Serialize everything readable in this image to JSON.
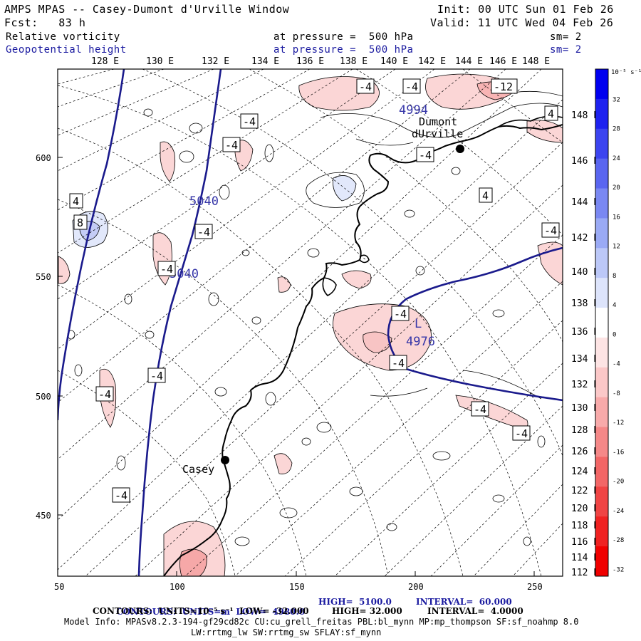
{
  "header": {
    "title": "AMPS MPAS -- Casey-Dumont d'Urville Window",
    "fcst": "Fcst:   83 h",
    "init": "Init: 00 UTC Sun 01 Feb 26",
    "valid": "Valid: 11 UTC Wed 04 Feb 26",
    "field1_name": "Relative vorticity",
    "field1_level": "at pressure =  500 hPa",
    "field1_sm": "sm= 2",
    "field2_name": "Geopotential height",
    "field2_level": "at pressure =  500 hPa",
    "field2_sm": "sm= 2"
  },
  "map": {
    "top_lon_labels": [
      "128 E",
      "130 E",
      "132 E",
      "134 E",
      "136 E",
      "138 E",
      "140 E",
      "142 E",
      "144 E",
      "146 E",
      "148 E"
    ],
    "right_lon_labels": [
      "148 E",
      "146 E",
      "144 E",
      "142 E",
      "140 E",
      "138 E",
      "136 E",
      "134 E",
      "132 E",
      "130 E",
      "128 E",
      "126 E",
      "124 E",
      "122 E",
      "120 E",
      "118 E",
      "116 E",
      "114 E",
      "112 E"
    ],
    "x_ticks": [
      "50",
      "100",
      "150",
      "200",
      "250"
    ],
    "y_ticks": [
      "600",
      "550",
      "500",
      "450"
    ],
    "stations": [
      {
        "name": "Casey"
      },
      {
        "name": "Dumont dUrville"
      }
    ],
    "height_labels": [
      "5040",
      "5040",
      "4994",
      "4976"
    ],
    "low_marker": "L",
    "vorticity_labels": [
      "-4",
      "-4",
      "-12",
      "-4",
      "-4",
      "4",
      "-4",
      "4",
      "4",
      "8",
      "-4",
      "-4",
      "-4",
      "-4",
      "-4",
      "-4",
      "-4",
      "-4",
      "-4",
      "-4",
      "-4",
      "-4"
    ]
  },
  "colorbar": {
    "unit": "10⁻⁵ s⁻¹",
    "labels": [
      "32",
      "28",
      "24",
      "20",
      "16",
      "12",
      "8",
      "4",
      "0",
      "-4",
      "-8",
      "-12",
      "-16",
      "-20",
      "-24",
      "-28",
      "-32"
    ],
    "colors": [
      "#0000f0",
      "#1e22f0",
      "#3c44f0",
      "#5a66f0",
      "#7a88f2",
      "#9aaaf5",
      "#bcc8f8",
      "#dde4fb",
      "#ffffff",
      "#fde4e4",
      "#fbc8c8",
      "#f8aaaa",
      "#f58888",
      "#f26666",
      "#f04444",
      "#f02222",
      "#f00000"
    ]
  },
  "footer": {
    "line1_a": "CONTOURS:  UNITS=m  LOW=  4980.0",
    "line1_b": "HIGH=  5100.0",
    "line1_c": "INTERVAL=  60.000",
    "line2_a": "CONTOURS:  UNITS=10⁻⁵ s⁻¹  LOW= -32.000",
    "line2_b": "HIGH= 32.000",
    "line2_c": "INTERVAL=  4.0000",
    "model_info": "Model Info: MPASv8.2.3-194-gf29cd82c CU:cu_grell_freitas PBL:bl_mynn MP:mp_thompson SF:sf_noahmp 8.0",
    "model_info2": "LW:rrtmg_lw SW:rrtmg_sw SFLAY:sf_mynn"
  }
}
